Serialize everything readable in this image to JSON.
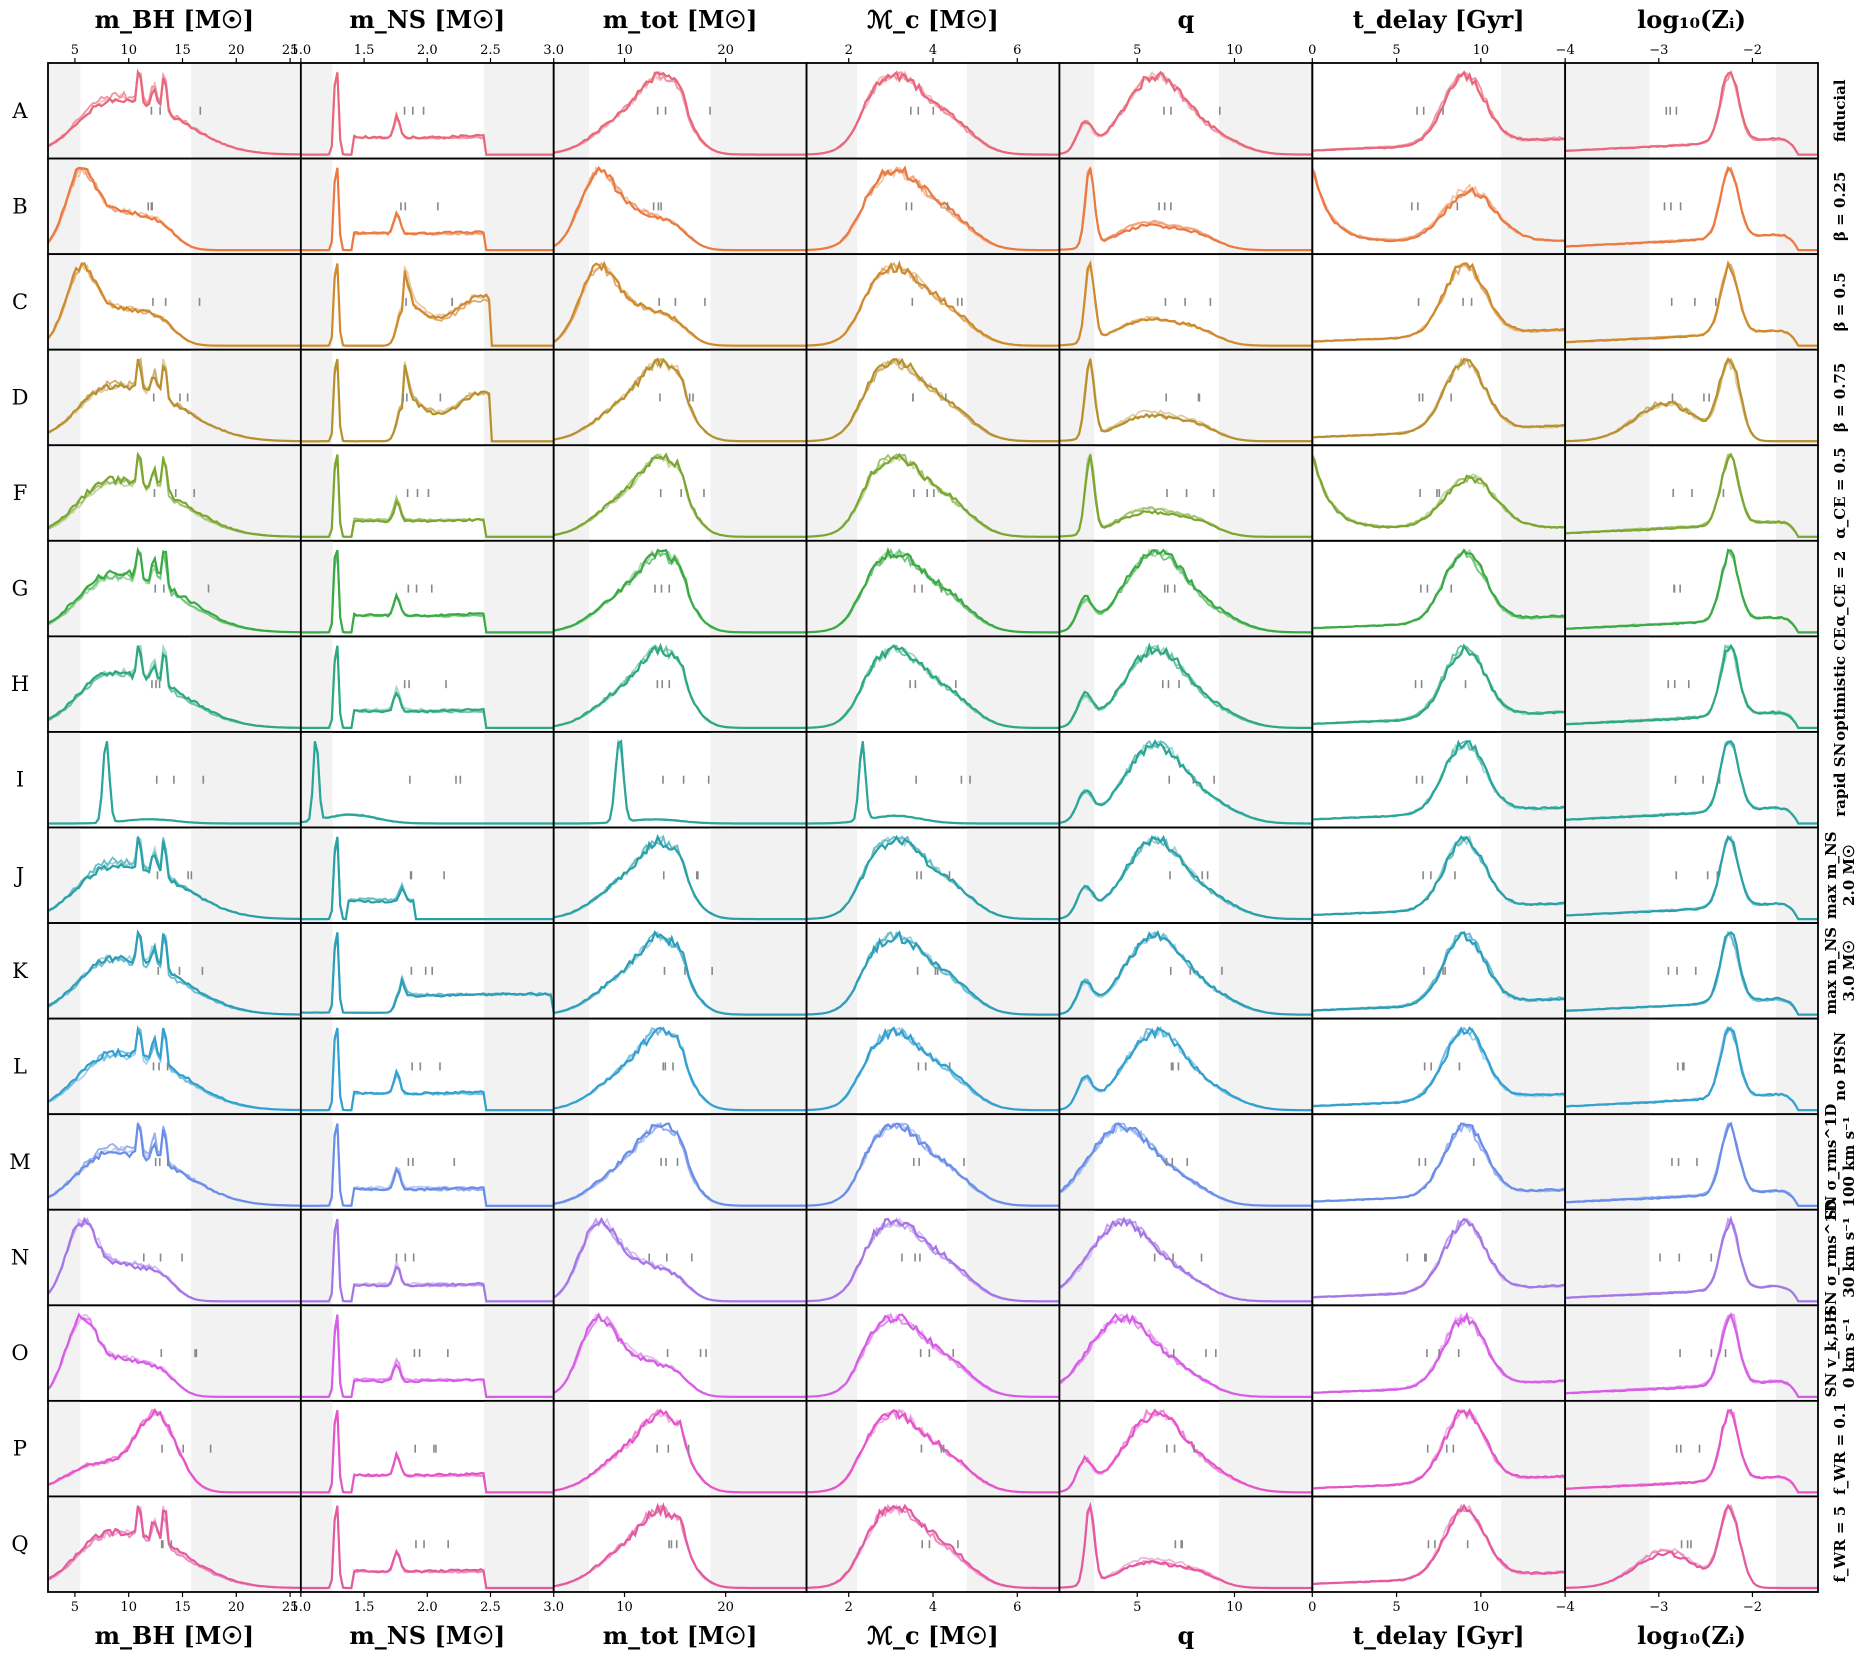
{
  "chart_data": {
    "type": "line",
    "rows": [
      "A",
      "B",
      "C",
      "D",
      "F",
      "G",
      "H",
      "I",
      "J",
      "K",
      "L",
      "M",
      "N",
      "O",
      "P",
      "Q"
    ],
    "variations": [
      [
        "fiducial"
      ],
      [
        "β = 0.25"
      ],
      [
        "β = 0.5"
      ],
      [
        "β = 0.75"
      ],
      [
        "α_CE = 0.5"
      ],
      [
        "α_CE = 2"
      ],
      [
        "optimistic CE"
      ],
      [
        "rapid SN"
      ],
      [
        "max m_NS",
        "2.0 M☉"
      ],
      [
        "max m_NS",
        "3.0 M☉"
      ],
      [
        "no PISN"
      ],
      [
        "SN σ_rms^1D",
        "100 km s⁻¹"
      ],
      [
        "SN σ_rms^1D",
        "30 km s⁻¹"
      ],
      [
        "SN v_k,BH",
        "0 km s⁻¹"
      ],
      [
        "f_WR = 0.1"
      ],
      [
        "f_WR = 5"
      ]
    ],
    "row_colors": [
      "#e8677a",
      "#ea7a42",
      "#cf8a2e",
      "#b89030",
      "#7ba631",
      "#3aaa45",
      "#2ea880",
      "#2aa59a",
      "#2aa0a8",
      "#2c9eb8",
      "#34a0d0",
      "#6a8ee8",
      "#a577e6",
      "#d65ee6",
      "#e455c8",
      "#e35aa0"
    ],
    "columns": [
      {
        "key": "mBH",
        "title": "m_BH [M☉]",
        "xlim": [
          2.5,
          26
        ],
        "ticks": [
          {
            "v": 5,
            "t": "5"
          },
          {
            "v": 10,
            "t": "10"
          },
          {
            "v": 15,
            "t": "15"
          },
          {
            "v": 20,
            "t": "20"
          },
          {
            "v": 25,
            "t": "25"
          }
        ],
        "shade": [
          [
            2.5,
            5.5
          ],
          [
            15.8,
            26
          ]
        ]
      },
      {
        "key": "mNS",
        "title": "m_NS [M☉]",
        "xlim": [
          1.0,
          3.0
        ],
        "ticks": [
          {
            "v": 1.0,
            "t": "1.0"
          },
          {
            "v": 1.5,
            "t": "1.5"
          },
          {
            "v": 2.0,
            "t": "2.0"
          },
          {
            "v": 2.5,
            "t": "2.5"
          },
          {
            "v": 3.0,
            "t": "3.0"
          }
        ],
        "shade": [
          [
            1.0,
            1.25
          ],
          [
            2.45,
            3.0
          ]
        ]
      },
      {
        "key": "mtot",
        "title": "m_tot [M☉]",
        "xlim": [
          3.0,
          28
        ],
        "ticks": [
          {
            "v": 10,
            "t": "10"
          },
          {
            "v": 20,
            "t": "20"
          }
        ],
        "shade": [
          [
            3.0,
            6.5
          ],
          [
            18.5,
            28
          ]
        ]
      },
      {
        "key": "Mc",
        "title": "ℳ_c [M☉]",
        "xlim": [
          1.0,
          7.0
        ],
        "ticks": [
          {
            "v": 2,
            "t": "2"
          },
          {
            "v": 4,
            "t": "4"
          },
          {
            "v": 6,
            "t": "6"
          }
        ],
        "shade": [
          [
            1.0,
            2.2
          ],
          [
            4.8,
            7.0
          ]
        ]
      },
      {
        "key": "q",
        "title": "q",
        "xlim": [
          1.0,
          14.0
        ],
        "ticks": [
          {
            "v": 5,
            "t": "5"
          },
          {
            "v": 10,
            "t": "10"
          }
        ],
        "shade": [
          [
            1.0,
            2.8
          ],
          [
            9.2,
            14.0
          ]
        ]
      },
      {
        "key": "tdelay",
        "title": "t_delay [Gyr]",
        "xlim": [
          0,
          15
        ],
        "ticks": [
          {
            "v": 0,
            "t": "0"
          },
          {
            "v": 5,
            "t": "5"
          },
          {
            "v": 10,
            "t": "10"
          }
        ],
        "shade": [
          [
            11.2,
            15
          ]
        ]
      },
      {
        "key": "logZ",
        "title": "log₁₀(Zᵢ)",
        "xlim": [
          -4.0,
          -1.3
        ],
        "ticks": [
          {
            "v": -4,
            "t": "−4"
          },
          {
            "v": -3,
            "t": "−3"
          },
          {
            "v": -2,
            "t": "−2"
          }
        ],
        "shade": [
          [
            -4.0,
            -3.1
          ],
          [
            -1.75,
            -1.3
          ]
        ]
      }
    ],
    "grid": false,
    "legend": "none",
    "marker_samples": 3
  }
}
